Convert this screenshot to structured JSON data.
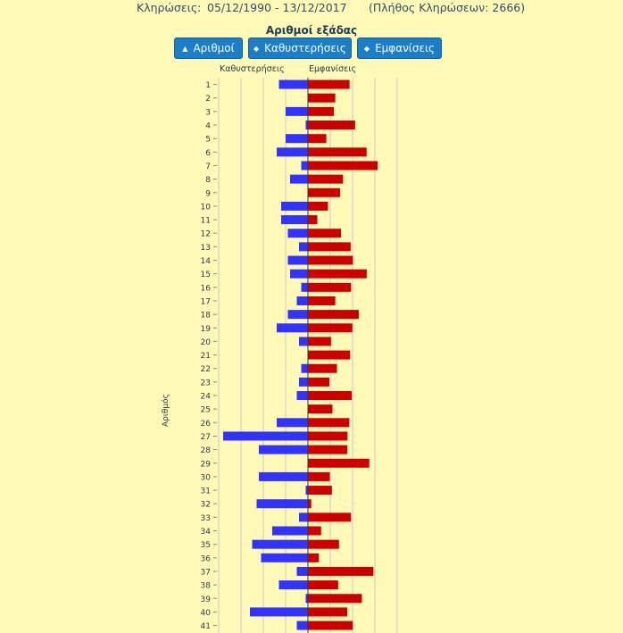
{
  "header": {
    "draws_label": "Κληρώσεις:",
    "date_range": "05/12/1990 - 13/12/2017",
    "draw_count": "(Πλήθος Κληρώσεων: 2666)"
  },
  "chart_title": "Αριθμοί εξάδας",
  "buttons": {
    "numbers": "Αριθμοί",
    "delays": "Καθυστερήσεις",
    "appearances": "Εμφανίσεις"
  },
  "colors": {
    "delays": "#3333ff",
    "appearances": "#cc0000",
    "grid": "#c8c8c8",
    "axis": "#333333"
  },
  "chart_data": {
    "type": "bar",
    "orientation": "horizontal-diverging",
    "title": "Αριθμοί εξάδας",
    "ylabel": "Αριθμός",
    "categories": [
      "1",
      "2",
      "3",
      "4",
      "5",
      "6",
      "7",
      "8",
      "9",
      "10",
      "11",
      "12",
      "13",
      "14",
      "15",
      "16",
      "17",
      "18",
      "19",
      "20",
      "21",
      "22",
      "23",
      "24",
      "25",
      "26",
      "27",
      "28",
      "29",
      "30",
      "31",
      "32",
      "33",
      "34",
      "35",
      "36",
      "37",
      "38",
      "39",
      "40",
      "41"
    ],
    "series": [
      {
        "name": "Καθυστερήσεις",
        "values": [
          13,
          0,
          10,
          1,
          10,
          14,
          3,
          8,
          0,
          12,
          12,
          9,
          4,
          9,
          8,
          3,
          5,
          9,
          14,
          4,
          0,
          3,
          4,
          5,
          0,
          14,
          38,
          22,
          0,
          22,
          1,
          23,
          4,
          16,
          25,
          21,
          5,
          13,
          1,
          26,
          5
        ]
      },
      {
        "name": "Εμφανίσεις",
        "values": [
          373,
          245,
          233,
          423,
          165,
          526,
          625,
          315,
          288,
          180,
          84,
          296,
          383,
          403,
          527,
          387,
          245,
          456,
          398,
          207,
          378,
          260,
          192,
          393,
          220,
          371,
          355,
          353,
          550,
          196,
          215,
          30,
          386,
          118,
          279,
          98,
          587,
          271,
          484,
          353,
          402
        ]
      }
    ],
    "left_range": [
      0,
      40
    ],
    "right_range": [
      0,
      800
    ]
  }
}
